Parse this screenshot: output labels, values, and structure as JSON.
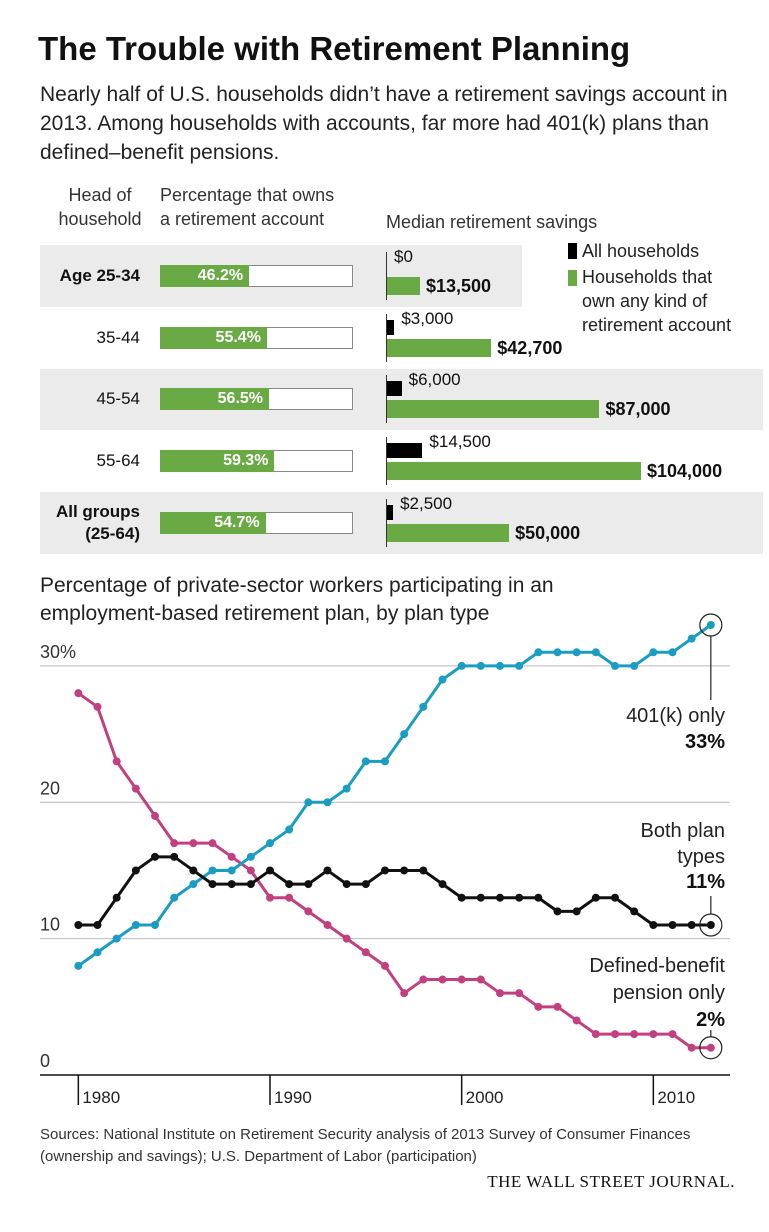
{
  "chart_data": [
    {
      "type": "table-bar",
      "title": "The Trouble with Retirement Planning",
      "subtitle": "Nearly half of U.S. households didn’t have a retirement savings account in 2013. Among households with accounts, far more had 401(k) plans than defined–benefit pensions.",
      "column_titles": [
        "Head of household",
        "Percentage that owns a retirement account",
        "Median retirement savings"
      ],
      "categories": [
        "Age 25-34",
        "35-44",
        "45-54",
        "55-64",
        "All groups (25-64)"
      ],
      "ownership": {
        "values": [
          46.2,
          55.4,
          56.5,
          59.3,
          54.7
        ],
        "value_labels": [
          "46.2%",
          "55.4%",
          "56.5%",
          "59.3%",
          "54.7%"
        ],
        "color": "#6aaa45",
        "xlim": [
          0,
          100
        ]
      },
      "series": [
        {
          "name": "All households",
          "color": "#000000",
          "values": [
            0,
            3000,
            6000,
            14500,
            2500
          ],
          "value_labels": [
            "$0",
            "$3,000",
            "$6,000",
            "$14,500",
            "$2,500"
          ]
        },
        {
          "name": "Households that own any kind of retirement account",
          "color": "#6aaa45",
          "values": [
            13500,
            42700,
            87000,
            104000,
            50000
          ],
          "value_labels": [
            "$13,500",
            "$42,700",
            "$87,000",
            "$104,000",
            "$50,000"
          ]
        }
      ]
    },
    {
      "type": "line",
      "title": "Percentage of private-sector workers participating in an employment-based retirement plan, by plan type",
      "x": [
        1980,
        1981,
        1982,
        1983,
        1984,
        1985,
        1986,
        1987,
        1988,
        1989,
        1990,
        1991,
        1992,
        1993,
        1994,
        1995,
        1996,
        1997,
        1998,
        1999,
        2000,
        2001,
        2002,
        2003,
        2004,
        2005,
        2006,
        2007,
        2008,
        2009,
        2010,
        2011,
        2012,
        2013
      ],
      "xlim": [
        1978,
        2014
      ],
      "xticks": [
        1980,
        1990,
        2000,
        2010
      ],
      "ylim": [
        0,
        33
      ],
      "yticks": [
        0,
        10,
        20,
        {
          "value": 30,
          "label": "30%"
        }
      ],
      "grid": true,
      "series": [
        {
          "name": "Defined-benefit pension only",
          "color": "#c2407f",
          "end_label": "2%",
          "values": [
            28,
            27,
            23,
            21,
            19,
            17,
            17,
            17,
            16,
            15,
            13,
            13,
            12,
            11,
            10,
            9,
            8,
            6,
            7,
            7,
            7,
            7,
            6,
            6,
            5,
            5,
            4,
            3,
            3,
            3,
            3,
            3,
            2,
            2
          ]
        },
        {
          "name": "401(k) only",
          "color": "#1a9dc3",
          "end_label": "33%",
          "values": [
            8,
            9,
            10,
            11,
            11,
            13,
            14,
            15,
            15,
            16,
            17,
            18,
            20,
            20,
            21,
            23,
            23,
            25,
            27,
            29,
            30,
            30,
            30,
            30,
            31,
            31,
            31,
            31,
            30,
            30,
            31,
            31,
            32,
            33
          ]
        },
        {
          "name": "Both plan types",
          "color": "#111111",
          "end_label": "11%",
          "values": [
            11,
            11,
            13,
            15,
            16,
            16,
            15,
            14,
            14,
            14,
            15,
            14,
            14,
            15,
            14,
            14,
            15,
            15,
            15,
            14,
            13,
            13,
            13,
            13,
            13,
            12,
            12,
            13,
            13,
            12,
            11,
            11,
            11,
            11
          ]
        }
      ]
    }
  ],
  "footer": {
    "sources": "Sources: National Institute on Retirement Security analysis of 2013 Survey of Consumer Finances (ownership and savings); U.S. Department of Labor (participation)",
    "credit": "THE WALL STREET JOURNAL."
  }
}
